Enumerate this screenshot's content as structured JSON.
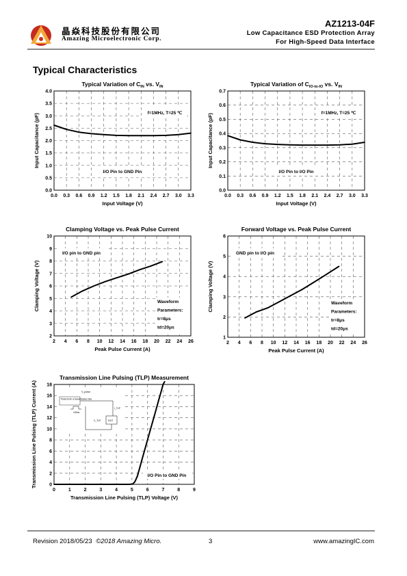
{
  "header": {
    "company_cn": "晶焱科技股份有限公司",
    "company_en": "Amazing Microelectronic Corp.",
    "part_number": "AZ1213-04F",
    "subtitle1": "Low Capacitance ESD Protection Array",
    "subtitle2": "For High-Speed Data Interface"
  },
  "section_title": "Typical Characteristics",
  "chart_data": [
    {
      "type": "line",
      "title": "Typical Variation of C_IN vs. V_IN",
      "title_main": "Typical Variation of C",
      "title_sub": "IN",
      "title_mid": " vs. V",
      "title_sub2": "IN",
      "xlabel": "Input Voltage (V)",
      "ylabel": "Input Capacitance (pF)",
      "xlim": [
        0,
        3.3
      ],
      "ylim": [
        0,
        4.0
      ],
      "xticks": [
        "0.0",
        "0.3",
        "0.6",
        "0.9",
        "1.2",
        "1.5",
        "1.8",
        "2.1",
        "2.4",
        "2.7",
        "3.0",
        "3.3"
      ],
      "yticks": [
        "0.0",
        "0.5",
        "1.0",
        "1.5",
        "2.0",
        "2.5",
        "3.0",
        "3.5",
        "4.0"
      ],
      "annotations": [
        "f=1MHz, T=25 ℃",
        "I/O Pin to GND Pin"
      ],
      "series": [
        {
          "x": [
            0,
            0.3,
            0.6,
            0.9,
            1.2,
            1.5,
            1.8,
            2.1,
            2.4,
            2.7,
            3.0,
            3.3
          ],
          "y": [
            2.62,
            2.45,
            2.34,
            2.28,
            2.24,
            2.21,
            2.2,
            2.2,
            2.2,
            2.21,
            2.24,
            2.3
          ]
        }
      ]
    },
    {
      "type": "line",
      "title": "Typical Variation of C_IO-to-IO vs. V_IN",
      "title_main": "Typical Variation of C",
      "title_sub": "IO-to-IO",
      "title_mid": " vs. V",
      "title_sub2": "IN",
      "xlabel": "Input Voltage (V)",
      "ylabel": "Input Capacitance (pF)",
      "xlim": [
        0,
        3.3
      ],
      "ylim": [
        0,
        0.7
      ],
      "xticks": [
        "0.0",
        "0.3",
        "0.6",
        "0.9",
        "1.2",
        "1.5",
        "1.8",
        "2.1",
        "2.4",
        "2.7",
        "3.0",
        "3.3"
      ],
      "yticks": [
        "0.0",
        "0.1",
        "0.2",
        "0.3",
        "0.4",
        "0.5",
        "0.6",
        "0.7"
      ],
      "annotations": [
        "f=1MHz, T=25 ℃",
        "I/O Pin to I/O Pin"
      ],
      "series": [
        {
          "x": [
            0,
            0.3,
            0.6,
            0.9,
            1.2,
            1.5,
            1.8,
            2.1,
            2.4,
            2.7,
            3.0,
            3.3
          ],
          "y": [
            0.385,
            0.355,
            0.338,
            0.328,
            0.323,
            0.32,
            0.318,
            0.318,
            0.318,
            0.32,
            0.325,
            0.338
          ]
        }
      ]
    },
    {
      "type": "line",
      "title": "Clamping Voltage vs. Peak Pulse Current",
      "xlabel": "Peak Pulse Current (A)",
      "ylabel": "Clamping Voltage (V)",
      "xlim": [
        2,
        26
      ],
      "ylim": [
        2,
        10
      ],
      "xticks": [
        "2",
        "4",
        "6",
        "8",
        "10",
        "12",
        "14",
        "16",
        "18",
        "20",
        "22",
        "24",
        "26"
      ],
      "yticks": [
        "2",
        "3",
        "4",
        "5",
        "6",
        "7",
        "8",
        "9",
        "10"
      ],
      "annotations": [
        "I/O pin to GND pin",
        "Waveform",
        "Parameters:",
        "tr=8μs",
        "td=20μs"
      ],
      "series": [
        {
          "x": [
            5,
            7,
            9,
            11,
            13,
            15,
            17,
            19,
            21
          ],
          "y": [
            5.1,
            5.6,
            6.0,
            6.35,
            6.65,
            6.95,
            7.3,
            7.6,
            7.95
          ]
        }
      ]
    },
    {
      "type": "line",
      "title": "Forward Voltage vs. Peak Pulse Current",
      "xlabel": "Peak Pulse Current (A)",
      "ylabel": "Clamping Voltage (V)",
      "xlim": [
        2,
        26
      ],
      "ylim": [
        1,
        6
      ],
      "xticks": [
        "2",
        "4",
        "6",
        "8",
        "10",
        "12",
        "14",
        "16",
        "18",
        "20",
        "22",
        "24",
        "26"
      ],
      "yticks": [
        "1",
        "2",
        "3",
        "4",
        "5",
        "6"
      ],
      "annotations": [
        "GND pin to I/O pin",
        "Waveform",
        "Parameters:",
        "tr=8μs",
        "td=20μs"
      ],
      "series": [
        {
          "x": [
            5,
            7,
            9,
            11,
            13,
            15,
            17,
            19,
            21.5
          ],
          "y": [
            1.95,
            2.25,
            2.45,
            2.75,
            3.05,
            3.35,
            3.7,
            4.05,
            4.5
          ]
        }
      ]
    },
    {
      "type": "line",
      "title": "Transmission Line Pulsing (TLP) Measurement",
      "xlabel": "Transmission Line Pulsing (TLP) Voltage (V)",
      "ylabel": "Transmission Line Pulsing (TLP) Current (A)",
      "xlim": [
        0,
        9
      ],
      "ylim": [
        0,
        18
      ],
      "xticks": [
        "0",
        "1",
        "2",
        "3",
        "4",
        "5",
        "6",
        "7",
        "8",
        "9"
      ],
      "yticks": [
        "0",
        "2",
        "4",
        "6",
        "8",
        "10",
        "12",
        "14",
        "16",
        "18"
      ],
      "annotations": [
        "I/O Pin to GND Pin"
      ],
      "inset_labels": [
        "V_pulse",
        "Pulse from a transmission line",
        "100ns",
        "I_TLP",
        "V_TLP",
        "DUT"
      ],
      "series": [
        {
          "x": [
            0,
            4.8,
            5.05,
            5.2,
            5.35,
            5.5,
            5.7,
            5.9,
            6.1,
            6.3,
            6.5,
            6.7,
            6.9,
            7.0,
            7.1
          ],
          "y": [
            0,
            0,
            0.05,
            0.5,
            1.5,
            3,
            5,
            7,
            9,
            11,
            13,
            15,
            17,
            18,
            18.5
          ]
        }
      ]
    }
  ],
  "footer": {
    "revision": "Revision 2018/05/23",
    "copyright": "©2018 Amazing Micro.",
    "page": "3",
    "website": "www.amazingIC.com"
  }
}
